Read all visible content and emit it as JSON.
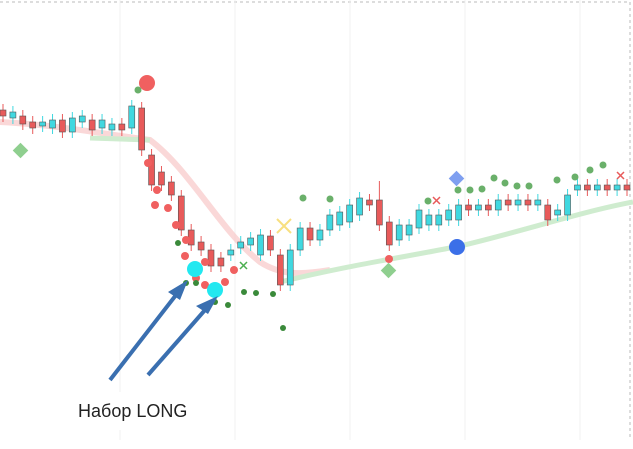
{
  "chart_data": {
    "type": "candlestick",
    "annotation": "Набор LONG",
    "up_color": "#40d8e0",
    "down_color": "#e85a5a",
    "ylim": [
      0,
      449
    ],
    "open": [
      339,
      331,
      333,
      327,
      323,
      321,
      329,
      317,
      327,
      329,
      321,
      319,
      325,
      321,
      341,
      294,
      277,
      267,
      253,
      219,
      207,
      199,
      191,
      194,
      201,
      204,
      194,
      213,
      194,
      164,
      199,
      221,
      209,
      219,
      224,
      227,
      234,
      249,
      249,
      227,
      209,
      214,
      221,
      224,
      224,
      229,
      229,
      244,
      239,
      244,
      239,
      249,
      244,
      249,
      244,
      244,
      234,
      234,
      259,
      264,
      259,
      264,
      259,
      264
    ],
    "high": [
      345,
      343,
      339,
      333,
      333,
      335,
      335,
      337,
      339,
      335,
      335,
      331,
      331,
      349,
      347,
      300,
      283,
      273,
      259,
      225,
      213,
      205,
      197,
      205,
      213,
      217,
      220,
      219,
      200,
      205,
      227,
      227,
      225,
      240,
      243,
      250,
      257,
      255,
      268,
      233,
      230,
      230,
      245,
      240,
      240,
      245,
      250,
      250,
      250,
      250,
      255,
      255,
      255,
      255,
      255,
      250,
      245,
      260,
      270,
      270,
      270,
      270,
      270,
      270
    ],
    "low": [
      327,
      325,
      319,
      315,
      317,
      315,
      311,
      311,
      321,
      313,
      315,
      313,
      313,
      315,
      293,
      258,
      258,
      248,
      213,
      198,
      193,
      177,
      177,
      188,
      195,
      198,
      188,
      193,
      158,
      158,
      193,
      203,
      203,
      213,
      218,
      221,
      228,
      238,
      218,
      198,
      203,
      208,
      215,
      218,
      218,
      223,
      223,
      233,
      233,
      233,
      233,
      238,
      238,
      238,
      238,
      223,
      228,
      228,
      253,
      253,
      253,
      253,
      253,
      253
    ],
    "close": [
      333,
      337,
      325,
      321,
      327,
      329,
      317,
      331,
      333,
      319,
      329,
      325,
      319,
      343,
      299,
      264,
      264,
      254,
      219,
      204,
      199,
      183,
      183,
      199,
      207,
      211,
      214,
      199,
      164,
      199,
      221,
      209,
      219,
      234,
      237,
      244,
      251,
      244,
      224,
      204,
      224,
      224,
      239,
      234,
      234,
      239,
      244,
      239,
      244,
      239,
      249,
      244,
      249,
      244,
      249,
      229,
      239,
      254,
      264,
      259,
      264,
      259,
      264,
      259
    ]
  }
}
